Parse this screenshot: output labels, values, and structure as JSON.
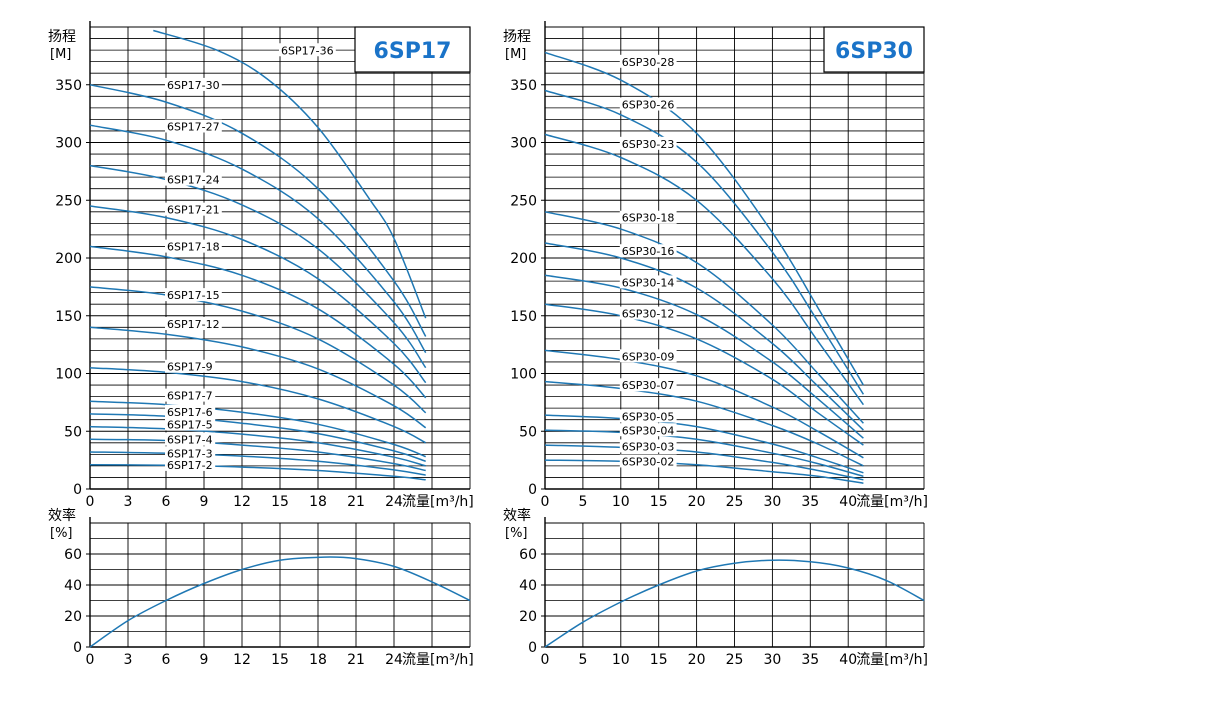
{
  "colors": {
    "curve": "#1f78b4",
    "grid": "#000000",
    "title": "#1a73c8",
    "label_bg": "#ffffff"
  },
  "chart_data": [
    {
      "id": "6sp17-head",
      "type": "line",
      "title": "6SP17",
      "ylabel_line1": "扬程",
      "ylabel_line2": "[M]",
      "xlabel": "流量[m³/h]",
      "x_ticks": [
        "0",
        "3",
        "6",
        "9",
        "12",
        "15",
        "18",
        "21",
        "24"
      ],
      "y_ticks": [
        "0",
        "50",
        "100",
        "150",
        "200",
        "250",
        "300",
        "350"
      ],
      "xlim": [
        0,
        30
      ],
      "ylim": [
        0,
        400
      ],
      "grid": true,
      "series": [
        {
          "name": "6SP17-2",
          "label_x": 6,
          "label_y": 20,
          "points": [
            [
              0,
              21
            ],
            [
              6,
              20.5
            ],
            [
              12,
              19
            ],
            [
              18,
              16
            ],
            [
              24,
              11
            ],
            [
              26.5,
              8
            ]
          ]
        },
        {
          "name": "6SP17-3",
          "label_x": 6,
          "label_y": 30,
          "points": [
            [
              0,
              32
            ],
            [
              6,
              31
            ],
            [
              12,
              28.5
            ],
            [
              18,
              24
            ],
            [
              24,
              16.5
            ],
            [
              26.5,
              12
            ]
          ]
        },
        {
          "name": "6SP17-4",
          "label_x": 6,
          "label_y": 42,
          "points": [
            [
              0,
              43
            ],
            [
              6,
              42
            ],
            [
              12,
              38
            ],
            [
              18,
              32
            ],
            [
              24,
              22
            ],
            [
              26.5,
              16
            ]
          ]
        },
        {
          "name": "6SP17-5",
          "label_x": 6,
          "label_y": 55,
          "points": [
            [
              0,
              54
            ],
            [
              6,
              52
            ],
            [
              12,
              47.5
            ],
            [
              18,
              40
            ],
            [
              24,
              27.5
            ],
            [
              26.5,
              20
            ]
          ]
        },
        {
          "name": "6SP17-6",
          "label_x": 6,
          "label_y": 66,
          "points": [
            [
              0,
              65
            ],
            [
              6,
              63
            ],
            [
              12,
              57
            ],
            [
              18,
              48
            ],
            [
              24,
              33
            ],
            [
              26.5,
              24
            ]
          ]
        },
        {
          "name": "6SP17-7",
          "label_x": 6,
          "label_y": 80,
          "points": [
            [
              0,
              76
            ],
            [
              6,
              73
            ],
            [
              12,
              66.5
            ],
            [
              18,
              56
            ],
            [
              24,
              38.5
            ],
            [
              26.5,
              28
            ]
          ]
        },
        {
          "name": "6SP17-9",
          "label_x": 6,
          "label_y": 105,
          "points": [
            [
              0,
              105
            ],
            [
              6,
              101
            ],
            [
              12,
              93
            ],
            [
              18,
              78
            ],
            [
              24,
              54
            ],
            [
              26.5,
              40
            ]
          ]
        },
        {
          "name": "6SP17-12",
          "label_x": 6,
          "label_y": 142,
          "points": [
            [
              0,
              140
            ],
            [
              6,
              134
            ],
            [
              12,
              123
            ],
            [
              18,
              104
            ],
            [
              24,
              72
            ],
            [
              26.5,
              53
            ]
          ]
        },
        {
          "name": "6SP17-15",
          "label_x": 6,
          "label_y": 167,
          "points": [
            [
              0,
              175
            ],
            [
              6,
              168
            ],
            [
              12,
              154
            ],
            [
              18,
              130
            ],
            [
              24,
              90
            ],
            [
              26.5,
              66
            ]
          ]
        },
        {
          "name": "6SP17-18",
          "label_x": 6,
          "label_y": 209,
          "points": [
            [
              0,
              210
            ],
            [
              6,
              201
            ],
            [
              12,
              185
            ],
            [
              18,
              156
            ],
            [
              24,
              108
            ],
            [
              26.5,
              79
            ]
          ]
        },
        {
          "name": "6SP17-21",
          "label_x": 6,
          "label_y": 241,
          "points": [
            [
              0,
              245
            ],
            [
              6,
              235
            ],
            [
              12,
              216
            ],
            [
              18,
              182
            ],
            [
              24,
              126
            ],
            [
              26.5,
              92
            ]
          ]
        },
        {
          "name": "6SP17-24",
          "label_x": 6,
          "label_y": 267,
          "points": [
            [
              0,
              280
            ],
            [
              6,
              268
            ],
            [
              12,
              246
            ],
            [
              18,
              208
            ],
            [
              24,
              144
            ],
            [
              26.5,
              105
            ]
          ]
        },
        {
          "name": "6SP17-27",
          "label_x": 6,
          "label_y": 313,
          "points": [
            [
              0,
              315
            ],
            [
              6,
              302
            ],
            [
              12,
              277
            ],
            [
              18,
              234
            ],
            [
              24,
              162
            ],
            [
              26.5,
              118
            ]
          ]
        },
        {
          "name": "6SP17-30",
          "label_x": 6,
          "label_y": 349,
          "points": [
            [
              0,
              350
            ],
            [
              6,
              335
            ],
            [
              12,
              308
            ],
            [
              18,
              260
            ],
            [
              24,
              180
            ],
            [
              26.5,
              132
            ]
          ]
        },
        {
          "name": "6SP17-36",
          "label_x": 15,
          "label_y": 379,
          "points": [
            [
              5,
              397
            ],
            [
              10,
              380
            ],
            [
              14,
              355
            ],
            [
              18,
              313
            ],
            [
              22,
              252
            ],
            [
              24,
              217
            ],
            [
              26.5,
              148
            ]
          ]
        }
      ]
    },
    {
      "id": "6sp17-eff",
      "type": "line",
      "ylabel_line1": "效率",
      "ylabel_line2": "[%]",
      "xlabel": "流量[m³/h]",
      "x_ticks": [
        "0",
        "3",
        "6",
        "9",
        "12",
        "15",
        "18",
        "21",
        "24"
      ],
      "y_ticks": [
        "0",
        "20",
        "40",
        "60"
      ],
      "xlim": [
        0,
        30
      ],
      "ylim": [
        0,
        80
      ],
      "grid": true,
      "series": [
        {
          "points": [
            [
              0,
              0
            ],
            [
              3,
              17
            ],
            [
              6,
              30
            ],
            [
              9,
              41
            ],
            [
              12,
              50
            ],
            [
              15,
              56
            ],
            [
              18.5,
              58
            ],
            [
              21,
              57
            ],
            [
              24,
              52
            ],
            [
              27,
              42
            ],
            [
              30,
              30
            ]
          ]
        }
      ]
    },
    {
      "id": "6sp30-head",
      "type": "line",
      "title": "6SP30",
      "ylabel_line1": "扬程",
      "ylabel_line2": "[M]",
      "xlabel": "流量[m³/h]",
      "x_ticks": [
        "0",
        "5",
        "10",
        "15",
        "20",
        "25",
        "30",
        "35",
        "40"
      ],
      "y_ticks": [
        "0",
        "50",
        "100",
        "150",
        "200",
        "250",
        "300",
        "350"
      ],
      "xlim": [
        0,
        50
      ],
      "ylim": [
        0,
        400
      ],
      "grid": true,
      "series": [
        {
          "name": "6SP30-02",
          "label_x": 10,
          "label_y": 23,
          "points": [
            [
              0,
              25
            ],
            [
              10,
              24
            ],
            [
              20,
              21
            ],
            [
              30,
              15
            ],
            [
              36,
              11
            ],
            [
              42,
              5
            ]
          ]
        },
        {
          "name": "6SP30-03",
          "label_x": 10,
          "label_y": 36,
          "points": [
            [
              0,
              38
            ],
            [
              10,
              36
            ],
            [
              20,
              32
            ],
            [
              30,
              23
            ],
            [
              36,
              16
            ],
            [
              42,
              8
            ]
          ]
        },
        {
          "name": "6SP30-04",
          "label_x": 10,
          "label_y": 50,
          "points": [
            [
              0,
              51
            ],
            [
              10,
              49
            ],
            [
              20,
              43
            ],
            [
              30,
              31
            ],
            [
              36,
              22
            ],
            [
              42,
              11
            ]
          ]
        },
        {
          "name": "6SP30-05",
          "label_x": 10,
          "label_y": 62,
          "points": [
            [
              0,
              64
            ],
            [
              10,
              61
            ],
            [
              20,
              54
            ],
            [
              30,
              39
            ],
            [
              36,
              27
            ],
            [
              42,
              14
            ]
          ]
        },
        {
          "name": "6SP30-07",
          "label_x": 10,
          "label_y": 89,
          "points": [
            [
              0,
              93
            ],
            [
              10,
              87
            ],
            [
              20,
              76
            ],
            [
              30,
              55
            ],
            [
              36,
              39
            ],
            [
              42,
              20
            ]
          ]
        },
        {
          "name": "6SP30-09",
          "label_x": 10,
          "label_y": 114,
          "points": [
            [
              0,
              120
            ],
            [
              10,
              112
            ],
            [
              20,
              98
            ],
            [
              30,
              71
            ],
            [
              36,
              50
            ],
            [
              42,
              27
            ]
          ]
        },
        {
          "name": "6SP30-12",
          "label_x": 10,
          "label_y": 151,
          "points": [
            [
              0,
              160
            ],
            [
              10,
              150
            ],
            [
              20,
              130
            ],
            [
              30,
              95
            ],
            [
              36,
              66
            ],
            [
              42,
              38
            ]
          ]
        },
        {
          "name": "6SP30-14",
          "label_x": 10,
          "label_y": 178,
          "points": [
            [
              0,
              185
            ],
            [
              10,
              174
            ],
            [
              20,
              151
            ],
            [
              30,
              110
            ],
            [
              36,
              78
            ],
            [
              42,
              44
            ]
          ]
        },
        {
          "name": "6SP30-16",
          "label_x": 10,
          "label_y": 205,
          "points": [
            [
              0,
              213
            ],
            [
              10,
              200
            ],
            [
              20,
              174
            ],
            [
              30,
              126
            ],
            [
              36,
              89
            ],
            [
              42,
              51
            ]
          ]
        },
        {
          "name": "6SP30-18",
          "label_x": 10,
          "label_y": 234,
          "points": [
            [
              0,
              240
            ],
            [
              10,
              225
            ],
            [
              20,
              196
            ],
            [
              30,
              142
            ],
            [
              36,
              100
            ],
            [
              42,
              57
            ]
          ]
        },
        {
          "name": "6SP30-23",
          "label_x": 10,
          "label_y": 298,
          "points": [
            [
              0,
              307
            ],
            [
              10,
              287
            ],
            [
              20,
              250
            ],
            [
              30,
              182
            ],
            [
              36,
              128
            ],
            [
              42,
              73
            ]
          ]
        },
        {
          "name": "6SP30-26",
          "label_x": 10,
          "label_y": 332,
          "points": [
            [
              0,
              345
            ],
            [
              10,
              324
            ],
            [
              20,
              283
            ],
            [
              30,
              205
            ],
            [
              36,
              145
            ],
            [
              42,
              82
            ]
          ]
        },
        {
          "name": "6SP30-28",
          "label_x": 10,
          "label_y": 369,
          "points": [
            [
              0,
              378
            ],
            [
              10,
              354
            ],
            [
              20,
              308
            ],
            [
              30,
              222
            ],
            [
              36,
              157
            ],
            [
              42,
              90
            ]
          ]
        }
      ]
    },
    {
      "id": "6sp30-eff",
      "type": "line",
      "ylabel_line1": "效率",
      "ylabel_line2": "[%]",
      "xlabel": "流量[m³/h]",
      "x_ticks": [
        "0",
        "5",
        "10",
        "15",
        "20",
        "25",
        "30",
        "35",
        "40"
      ],
      "y_ticks": [
        "0",
        "20",
        "40",
        "60"
      ],
      "xlim": [
        0,
        50
      ],
      "ylim": [
        0,
        80
      ],
      "grid": true,
      "series": [
        {
          "points": [
            [
              0,
              0
            ],
            [
              5,
              16
            ],
            [
              10,
              29
            ],
            [
              15,
              40
            ],
            [
              20,
              49
            ],
            [
              25,
              54
            ],
            [
              30,
              56
            ],
            [
              35,
              55
            ],
            [
              40,
              51
            ],
            [
              45,
              43
            ],
            [
              50,
              30
            ]
          ]
        }
      ]
    }
  ]
}
